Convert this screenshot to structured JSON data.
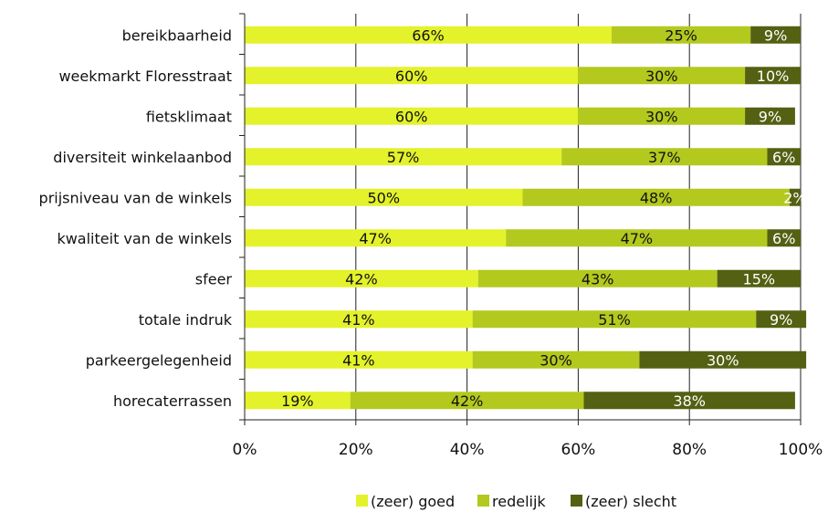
{
  "chart_data": {
    "type": "bar",
    "orientation": "horizontal",
    "stacked": true,
    "title": "",
    "categories": [
      "bereikbaarheid",
      "weekmarkt Floresstraat",
      "fietsklimaat",
      "diversiteit winkelaanbod",
      "prijsniveau van de winkels",
      "kwaliteit van de winkels",
      "sfeer",
      "totale indruk",
      "parkeergelegenheid",
      "horecaterrassen"
    ],
    "series": [
      {
        "name": "(zeer) goed",
        "color": "#e3f22a",
        "values": [
          66,
          60,
          60,
          57,
          50,
          47,
          42,
          41,
          41,
          19
        ]
      },
      {
        "name": "redelijk",
        "color": "#b3c91e",
        "values": [
          25,
          30,
          30,
          37,
          48,
          47,
          43,
          51,
          30,
          42
        ]
      },
      {
        "name": "(zeer) slecht",
        "color": "#546012",
        "values": [
          9,
          10,
          9,
          6,
          2,
          6,
          15,
          9,
          30,
          38
        ]
      }
    ],
    "xlim": [
      0,
      100
    ],
    "xticks": [
      "0%",
      "20%",
      "40%",
      "60%",
      "80%",
      "100%"
    ],
    "grid": "vertical",
    "legend_position": "bottom"
  }
}
